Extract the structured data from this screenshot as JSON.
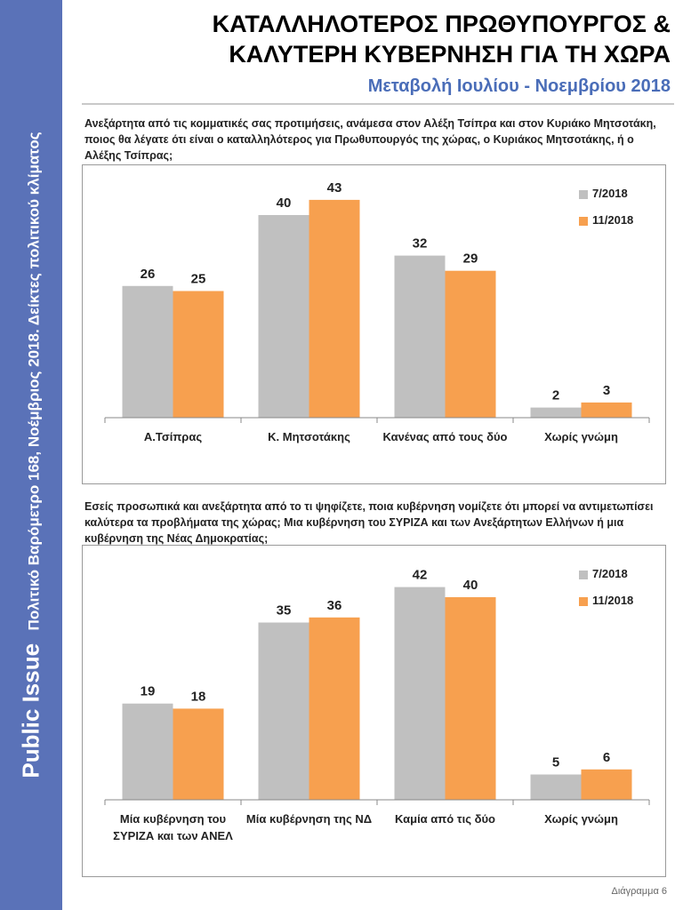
{
  "sidebar": {
    "brand": "Public Issue",
    "text": "Πολιτικό Βαρόμετρο 168, Νοέμβριος 2018. Δείκτες πολιτικού κλίματος"
  },
  "header": {
    "title_line1": "ΚΑΤΑΛΛΗΛΟΤΕΡΟΣ ΠΡΩΘΥΠΟΥΡΓΟΣ &",
    "title_line2": "ΚΑΛΥΤΕΡΗ ΚΥΒΕΡΝΗΣΗ ΓΙΑ ΤΗ ΧΩΡΑ",
    "subtitle": "Μεταβολή Ιουλίου - Νοεμβρίου 2018"
  },
  "questions": [
    "Ανεξάρτητα από τις κομματικές σας προτιμήσεις, ανάμεσα στον Αλέξη Τσίπρα και στον Κυριάκο Μητσοτάκη, ποιος θα λέγατε ότι είναι ο καταλληλότερος για Πρωθυπουργός της χώρας, ο Κυριάκος Μητσοτάκης, ή ο Αλέξης Τσίπρας;",
    "Εσείς προσωπικά και ανεξάρτητα από το τι ψηφίζετε, ποια κυβέρνηση νομίζετε ότι μπορεί να αντιμετωπίσει καλύτερα τα προβλήματα της χώρας; Μια κυβέρνηση του ΣΥΡΙΖΑ και των Ανεξάρτητων Ελλήνων ή μια κυβέρνηση της Νέας Δημοκρατίας;"
  ],
  "colors": {
    "series_2018_07": "#c0c0c0",
    "series_2018_11": "#f7a04f",
    "sidebar": "#5a72b8",
    "subtitle": "#4a6db8"
  },
  "chart_data": [
    {
      "type": "bar",
      "categories": [
        "Α.Τσίπρας",
        "Κ. Μητσοτάκης",
        "Κανένας από τους δύο",
        "Χωρίς γνώμη"
      ],
      "series": [
        {
          "name": "7/2018",
          "values": [
            26,
            40,
            32,
            2
          ]
        },
        {
          "name": "11/2018",
          "values": [
            25,
            43,
            29,
            3
          ]
        }
      ],
      "ylim": [
        0,
        50
      ],
      "grid": false,
      "legend": "top-right",
      "data_labels": true
    },
    {
      "type": "bar",
      "categories": [
        "Μία κυβέρνηση του ΣΥΡΙΖΑ και των ΑΝΕΛ",
        "Μία κυβέρνηση της ΝΔ",
        "Καμία από τις δύο",
        "Χωρίς γνώμη"
      ],
      "series": [
        {
          "name": "7/2018",
          "values": [
            19,
            35,
            42,
            5
          ]
        },
        {
          "name": "11/2018",
          "values": [
            18,
            36,
            40,
            6
          ]
        }
      ],
      "ylim": [
        0,
        50
      ],
      "grid": false,
      "legend": "top-right",
      "data_labels": true
    }
  ],
  "footer": {
    "label": "Διάγραμμα 6"
  }
}
